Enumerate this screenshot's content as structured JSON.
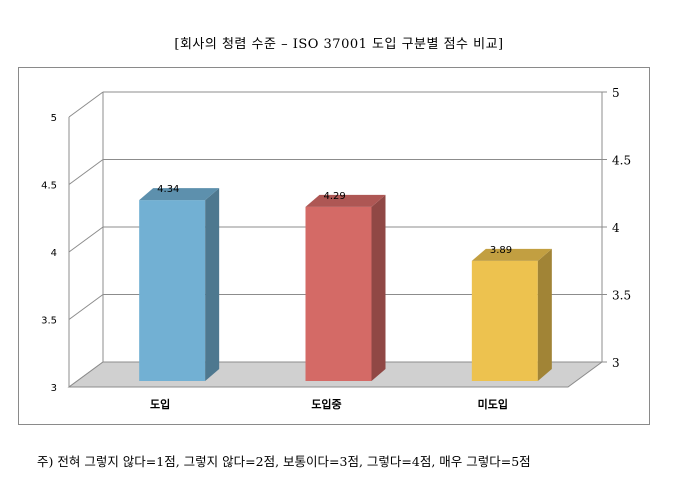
{
  "title": "[회사의 청렴 수준 – ISO 37001 도입 구분별 점수 비교]",
  "note": "주) 전혀 그렇지 않다=1점, 그렇지 않다=2점, 보통이다=3점, 그렇다=4점, 매우 그렇다=5점",
  "colors": {
    "도입": "#72b0d3",
    "도입중": "#d46a66",
    "미도입": "#edc24f"
  },
  "chart_data": {
    "type": "bar",
    "title": "[회사의 청렴 수준 – ISO 37001 도입 구분별 점수 비교]",
    "categories": [
      "도입",
      "도입중",
      "미도입"
    ],
    "values": [
      4.34,
      4.29,
      3.89
    ],
    "value_labels": [
      "4.34",
      "4.29",
      "3.89"
    ],
    "ylim": [
      3,
      5
    ],
    "yticks": [
      3,
      3.5,
      4,
      4.5,
      5
    ],
    "ytick_labels_left": [
      "3",
      "3.5",
      "4",
      "4.5",
      "5"
    ],
    "ytick_labels_right": [
      "3",
      "3.5",
      "4",
      "4.5",
      "5"
    ],
    "grid": true,
    "legend": "none",
    "style": "3d"
  }
}
